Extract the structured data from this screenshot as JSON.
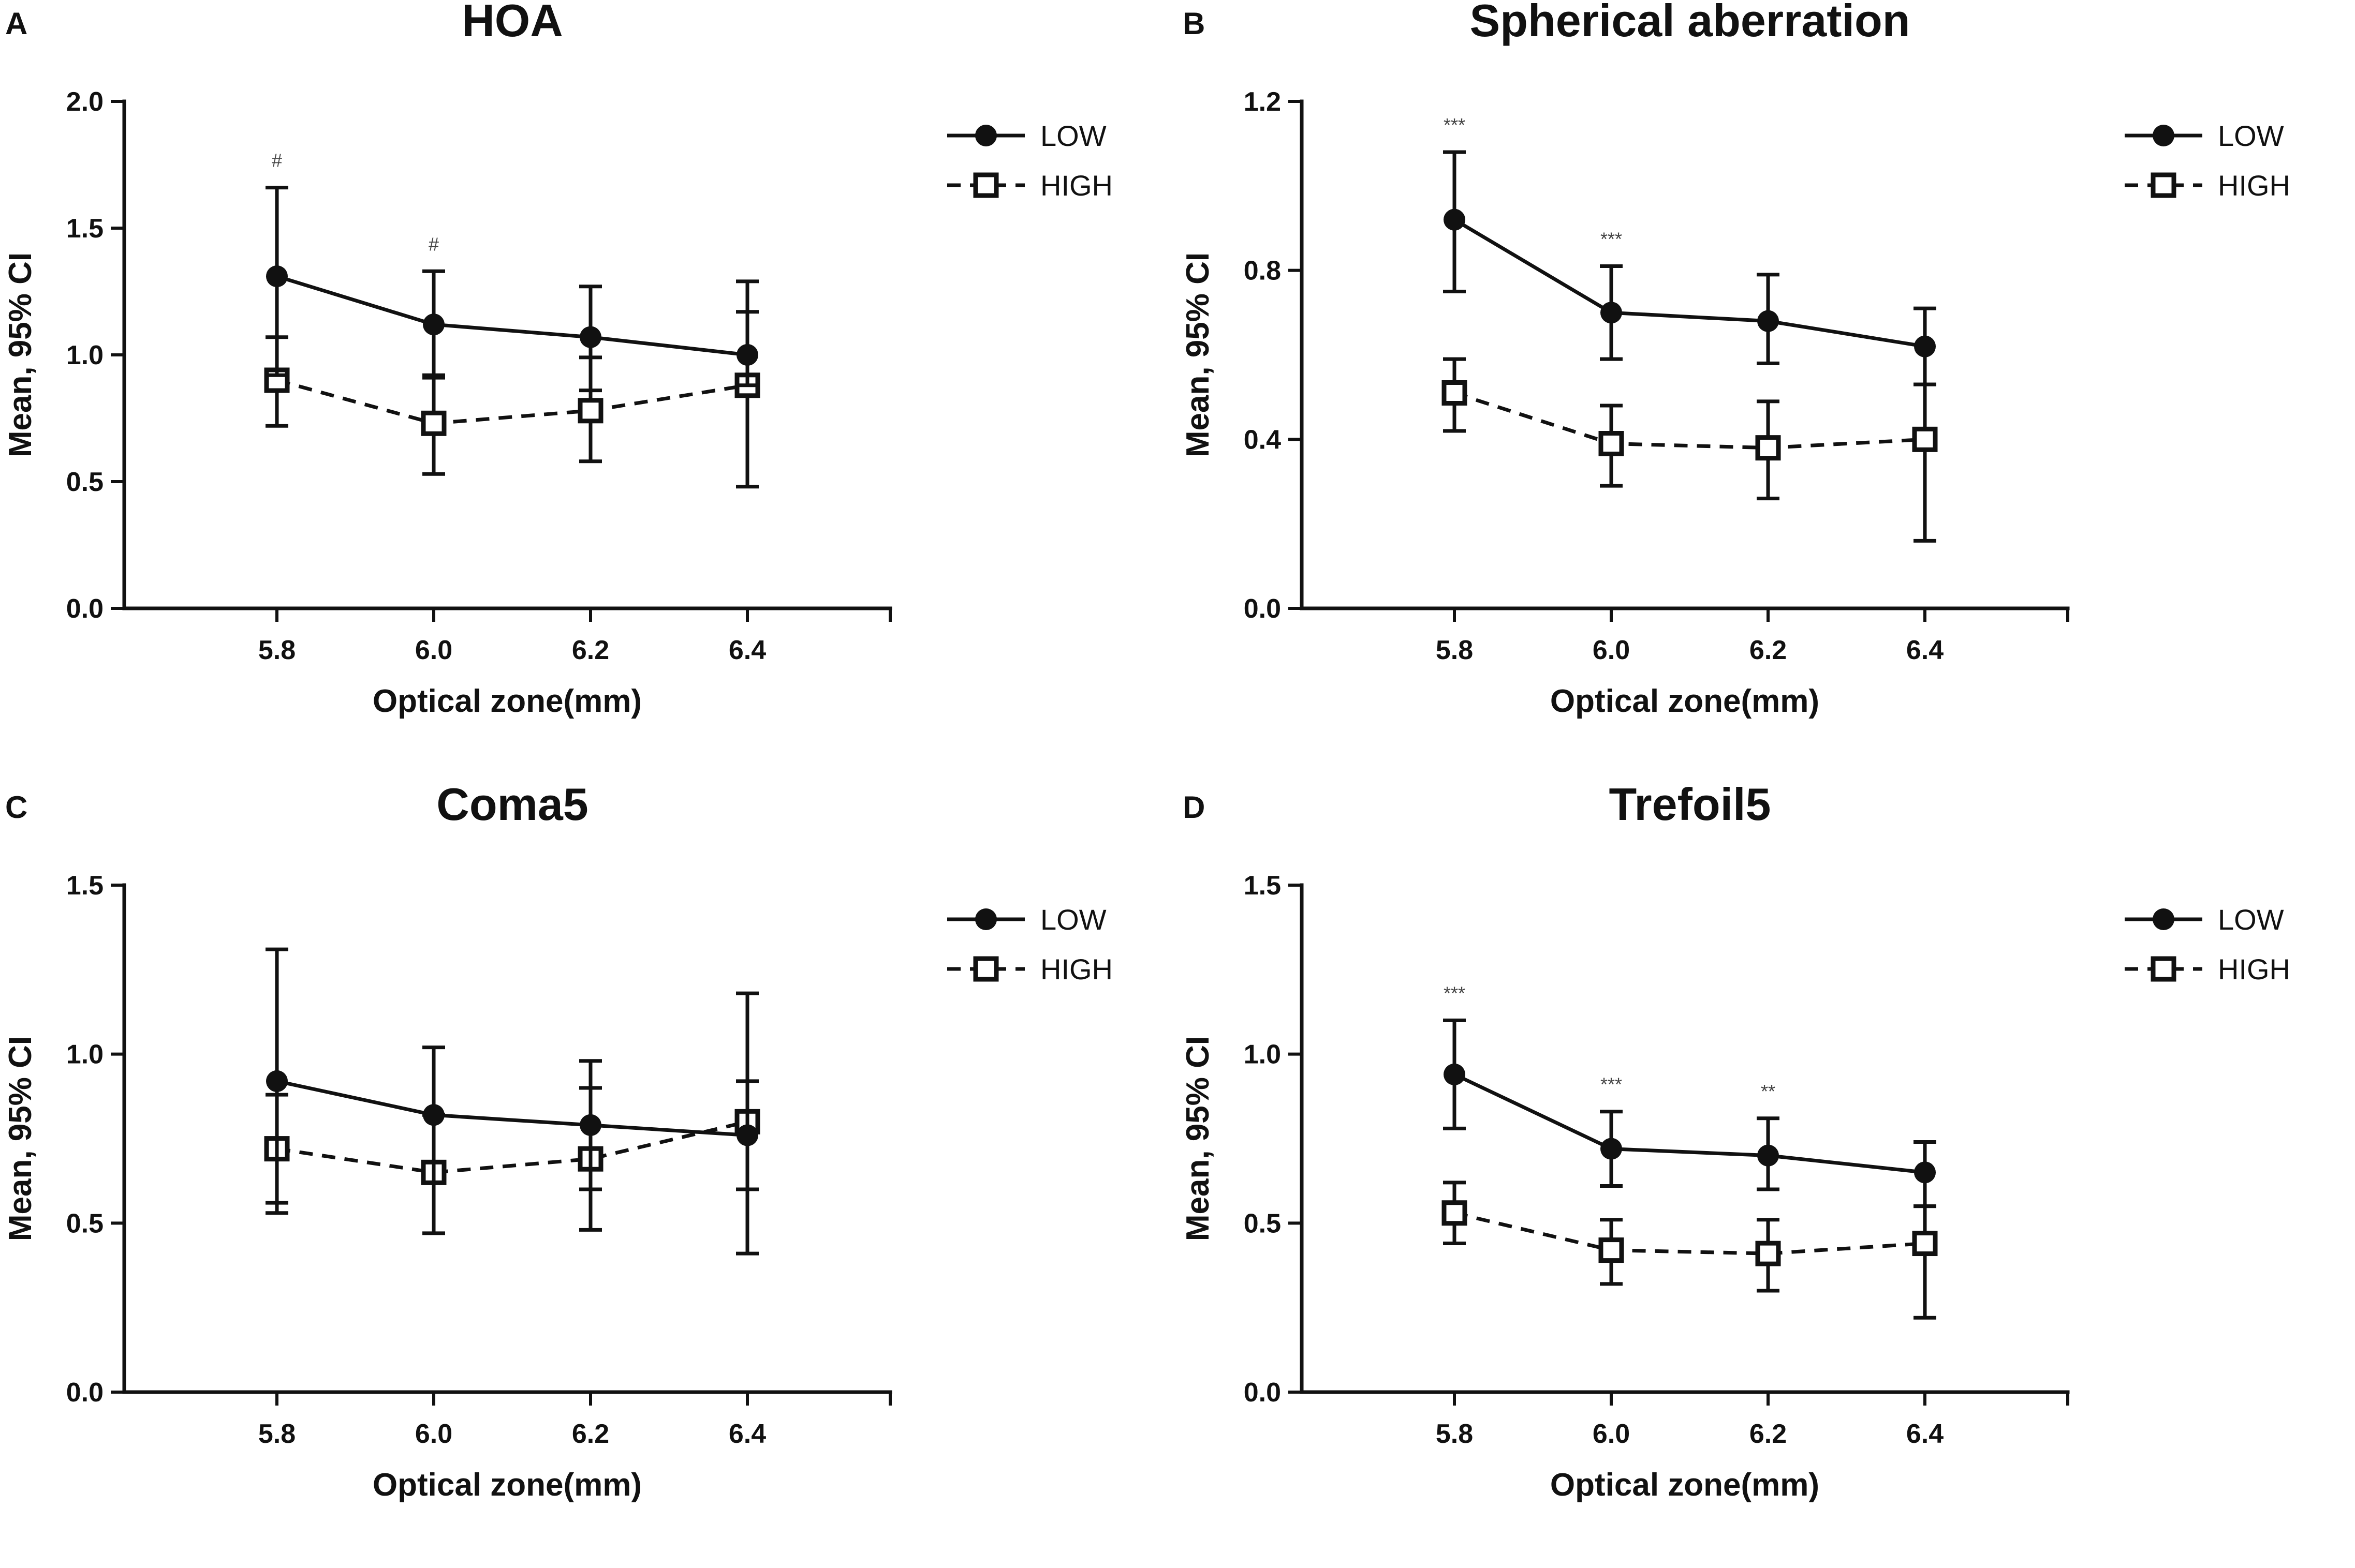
{
  "figure": {
    "series_styles": [
      {
        "name": "LOW",
        "marker": "filled-circle",
        "line": "solid",
        "color": "#111111"
      },
      {
        "name": "HIGH",
        "marker": "open-square",
        "line": "dashed",
        "color": "#111111"
      }
    ]
  },
  "chart_data": [
    {
      "panel": "A",
      "type": "line",
      "title": "HOA",
      "xlabel": "Optical zone(mm)",
      "ylabel": "Mean, 95% CI",
      "categories": [
        "5.8",
        "6.0",
        "6.2",
        "6.4"
      ],
      "yticks": [
        "0.0",
        "0.5",
        "1.0",
        "1.5",
        "2.0"
      ],
      "ylim": [
        0,
        2.0
      ],
      "legend": [
        "LOW",
        "HIGH"
      ],
      "series": [
        {
          "name": "LOW",
          "values": [
            1.31,
            1.12,
            1.07,
            1.0
          ],
          "ci_low": [
            0.92,
            0.92,
            0.86,
            0.88
          ],
          "ci_high": [
            1.66,
            1.33,
            1.27,
            1.29
          ]
        },
        {
          "name": "HIGH",
          "values": [
            0.9,
            0.73,
            0.78,
            0.88
          ],
          "ci_low": [
            0.72,
            0.53,
            0.58,
            0.48
          ],
          "ci_high": [
            1.07,
            0.91,
            0.99,
            1.17
          ]
        }
      ],
      "annotations": [
        {
          "index": 0,
          "text": "#"
        },
        {
          "index": 1,
          "text": "#"
        }
      ]
    },
    {
      "panel": "B",
      "type": "line",
      "title": "Spherical aberration",
      "xlabel": "Optical zone(mm)",
      "ylabel": "Mean, 95% CI",
      "categories": [
        "5.8",
        "6.0",
        "6.2",
        "6.4"
      ],
      "yticks": [
        "0.0",
        "0.4",
        "0.8",
        "1.2"
      ],
      "ylim": [
        0,
        1.2
      ],
      "legend": [
        "LOW",
        "HIGH"
      ],
      "series": [
        {
          "name": "LOW",
          "values": [
            0.92,
            0.7,
            0.68,
            0.62
          ],
          "ci_low": [
            0.75,
            0.59,
            0.58,
            0.53
          ],
          "ci_high": [
            1.08,
            0.81,
            0.79,
            0.71
          ]
        },
        {
          "name": "HIGH",
          "values": [
            0.51,
            0.39,
            0.38,
            0.4
          ],
          "ci_low": [
            0.42,
            0.29,
            0.26,
            0.16
          ],
          "ci_high": [
            0.59,
            0.48,
            0.49,
            0.53
          ]
        }
      ],
      "annotations": [
        {
          "index": 0,
          "text": "***"
        },
        {
          "index": 1,
          "text": "***"
        }
      ]
    },
    {
      "panel": "C",
      "type": "line",
      "title": "Coma5",
      "xlabel": "Optical zone(mm)",
      "ylabel": "Mean, 95% CI",
      "categories": [
        "5.8",
        "6.0",
        "6.2",
        "6.4"
      ],
      "yticks": [
        "0.0",
        "0.5",
        "1.0",
        "1.5"
      ],
      "ylim": [
        0,
        1.5
      ],
      "legend": [
        "LOW",
        "HIGH"
      ],
      "series": [
        {
          "name": "LOW",
          "values": [
            0.92,
            0.82,
            0.79,
            0.76
          ],
          "ci_low": [
            0.56,
            0.62,
            0.6,
            0.41
          ],
          "ci_high": [
            1.31,
            1.02,
            0.98,
            1.18
          ]
        },
        {
          "name": "HIGH",
          "values": [
            0.72,
            0.65,
            0.69,
            0.8
          ],
          "ci_low": [
            0.53,
            0.47,
            0.48,
            0.6
          ],
          "ci_high": [
            0.88,
            0.82,
            0.9,
            0.92
          ]
        }
      ],
      "annotations": []
    },
    {
      "panel": "D",
      "type": "line",
      "title": "Trefoil5",
      "xlabel": "Optical zone(mm)",
      "ylabel": "Mean, 95% CI",
      "categories": [
        "5.8",
        "6.0",
        "6.2",
        "6.4"
      ],
      "yticks": [
        "0.0",
        "0.5",
        "1.0",
        "1.5"
      ],
      "ylim": [
        0,
        1.5
      ],
      "legend": [
        "LOW",
        "HIGH"
      ],
      "series": [
        {
          "name": "LOW",
          "values": [
            0.94,
            0.72,
            0.7,
            0.65
          ],
          "ci_low": [
            0.78,
            0.61,
            0.6,
            0.55
          ],
          "ci_high": [
            1.1,
            0.83,
            0.81,
            0.74
          ]
        },
        {
          "name": "HIGH",
          "values": [
            0.53,
            0.42,
            0.41,
            0.44
          ],
          "ci_low": [
            0.44,
            0.32,
            0.3,
            0.22
          ],
          "ci_high": [
            0.62,
            0.51,
            0.51,
            0.55
          ]
        }
      ],
      "annotations": [
        {
          "index": 0,
          "text": "***"
        },
        {
          "index": 1,
          "text": "***"
        },
        {
          "index": 2,
          "text": "**"
        }
      ]
    }
  ]
}
